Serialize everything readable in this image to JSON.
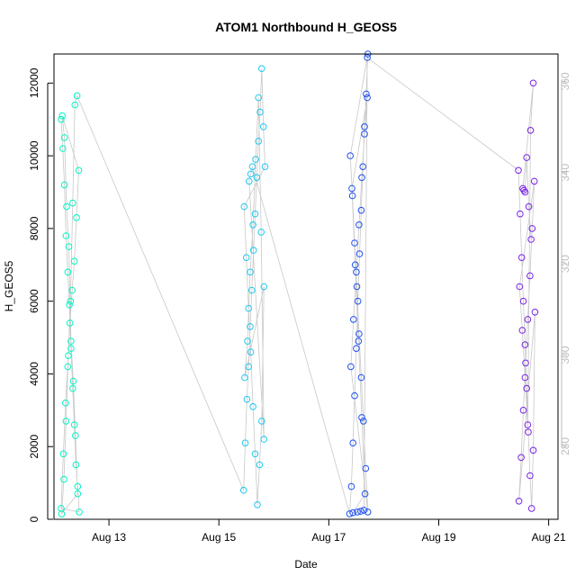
{
  "chart_data": {
    "type": "scatter",
    "title": "ATOM1 Northbound H_GEOS5",
    "xlabel": "Date",
    "ylabel": "H_GEOS5",
    "ylim": [
      0,
      12800
    ],
    "y2lim": [
      264,
      366
    ],
    "x_ticks": [
      {
        "label": "Aug 13",
        "value": 13.0
      },
      {
        "label": "Aug 15",
        "value": 15.0
      },
      {
        "label": "Aug 17",
        "value": 17.0
      },
      {
        "label": "Aug 19",
        "value": 19.0
      },
      {
        "label": "Aug 21",
        "value": 21.0
      }
    ],
    "y_ticks": [
      0,
      2000,
      4000,
      6000,
      8000,
      10000,
      12000
    ],
    "y2_ticks": [
      280,
      300,
      320,
      340,
      360
    ],
    "grid": false,
    "legend": "none",
    "series": [
      {
        "color": "#00f5c4",
        "x": [
          12.13,
          12.16,
          12.19,
          12.22,
          12.25,
          12.28,
          12.31,
          12.34,
          12.37,
          12.4,
          12.43,
          12.46,
          12.13,
          12.17,
          12.21,
          12.25,
          12.29,
          12.33,
          12.37,
          12.41,
          12.45,
          12.15,
          12.19,
          12.23,
          12.27,
          12.31,
          12.35,
          12.39,
          12.43,
          12.14,
          12.18,
          12.22,
          12.26,
          12.3,
          12.34,
          12.38,
          12.42
        ],
        "y": [
          11000,
          10200,
          9200,
          7800,
          6800,
          5900,
          4700,
          3600,
          2600,
          1500,
          900,
          200,
          300,
          1800,
          3200,
          4200,
          5400,
          6300,
          7100,
          8300,
          9600,
          11100,
          10500,
          8600,
          7500,
          4900,
          3800,
          2300,
          700,
          150,
          1100,
          2700,
          4500,
          6000,
          8700,
          11400,
          11650
        ]
      },
      {
        "color": "#1ec8ee",
        "x": [
          15.45,
          15.48,
          15.51,
          15.54,
          15.57,
          15.6,
          15.63,
          15.66,
          15.69,
          15.72,
          15.75,
          15.78,
          15.81,
          15.84,
          15.46,
          15.5,
          15.54,
          15.58,
          15.62,
          15.66,
          15.7,
          15.74,
          15.78,
          15.82,
          15.47,
          15.52,
          15.57,
          15.62,
          15.67,
          15.72,
          15.77,
          15.82,
          15.55,
          15.58,
          15.61
        ],
        "y": [
          800,
          2100,
          3300,
          4200,
          5300,
          6300,
          7400,
          8400,
          9400,
          10400,
          11200,
          12400,
          10800,
          9700,
          8600,
          7200,
          5800,
          4600,
          3100,
          1800,
          400,
          1500,
          2700,
          6400,
          3900,
          4900,
          6800,
          8100,
          9900,
          11600,
          7900,
          2200,
          9300,
          9500,
          9700
        ]
      },
      {
        "color": "#1e50f0",
        "x": [
          17.38,
          17.41,
          17.44,
          17.47,
          17.5,
          17.53,
          17.56,
          17.59,
          17.62,
          17.65,
          17.68,
          17.71,
          17.39,
          17.43,
          17.47,
          17.51,
          17.55,
          17.59,
          17.63,
          17.67,
          17.71,
          17.4,
          17.45,
          17.5,
          17.55,
          17.6,
          17.65,
          17.7,
          17.42,
          17.48,
          17.54,
          17.6,
          17.66,
          17.44,
          17.52,
          17.58,
          17.64,
          17.7
        ],
        "y": [
          150,
          900,
          2100,
          3400,
          4700,
          6000,
          7300,
          8500,
          9700,
          10800,
          11700,
          12800,
          10000,
          8900,
          7600,
          6400,
          5100,
          3900,
          2700,
          1400,
          200,
          4200,
          5500,
          6800,
          8100,
          9400,
          10600,
          11600,
          9100,
          7000,
          4900,
          2800,
          700,
          180,
          200,
          220,
          250,
          12700
        ]
      },
      {
        "color": "#7a22e6",
        "x": [
          20.45,
          20.48,
          20.51,
          20.54,
          20.57,
          20.6,
          20.63,
          20.66,
          20.69,
          20.72,
          20.75,
          20.46,
          20.5,
          20.54,
          20.58,
          20.62,
          20.66,
          20.7,
          20.74,
          20.47,
          20.52,
          20.57,
          20.62,
          20.67,
          20.72,
          20.53,
          20.55,
          20.57,
          20.6,
          20.64,
          20.68
        ],
        "y": [
          9600,
          8400,
          7200,
          6000,
          4800,
          3600,
          2400,
          1200,
          300,
          1900,
          5700,
          500,
          1700,
          3000,
          4300,
          5500,
          6700,
          8000,
          9300,
          6400,
          5200,
          3900,
          2600,
          10700,
          12000,
          9100,
          9050,
          9000,
          9950,
          8600,
          7700
        ]
      }
    ]
  }
}
